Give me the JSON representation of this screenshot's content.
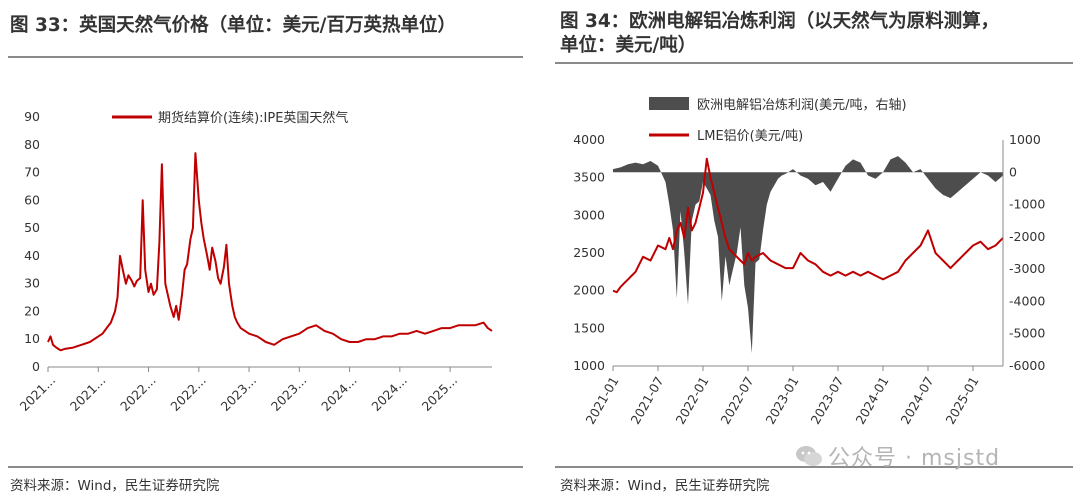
{
  "left_panel": {
    "title": "图 33：英国天然气价格（单位：美元/百万英热单位）",
    "source": "资料来源：Wind，民生证券研究院"
  },
  "right_panel": {
    "title_line1": "图 34：欧洲电解铝冶炼利润（以天然气为原料测算，",
    "title_line2": "单位：美元/吨）",
    "source": "资料来源：Wind，民生证券研究院"
  },
  "watermark": {
    "text": "公众号 · msjstd",
    "icon": "wechat-icon"
  },
  "colors": {
    "red": "#c00000",
    "gray": "#4d4d4d",
    "axis": "#888888"
  },
  "chart_data": [
    {
      "type": "line",
      "title": "英国天然气价格（单位：美元/百万英热单位）",
      "legend": [
        "期货结算价(连续):IPE英国天然气"
      ],
      "legend_position": "top-center",
      "ylim": [
        0,
        90
      ],
      "yticks": [
        0,
        10,
        20,
        30,
        40,
        50,
        60,
        70,
        80,
        90
      ],
      "xlim": [
        0,
        53
      ],
      "xticks": [
        0,
        6,
        12,
        18,
        24,
        30,
        36,
        42,
        48
      ],
      "xtick_labels": [
        "2021...",
        "2021...",
        "2022...",
        "2022...",
        "2023...",
        "2023...",
        "2024...",
        "2024...",
        "2025..."
      ],
      "series": [
        {
          "name": "期货结算价(连续):IPE英国天然气",
          "x": [
            0,
            0.3,
            0.6,
            1,
            1.5,
            2,
            3,
            4,
            5,
            6,
            6.5,
            7,
            7.5,
            8,
            8.3,
            8.6,
            9,
            9.3,
            9.6,
            10,
            10.3,
            10.6,
            11,
            11.3,
            11.6,
            12,
            12.3,
            12.6,
            13,
            13.3,
            13.6,
            14,
            14.3,
            14.6,
            15,
            15.3,
            15.6,
            16,
            16.3,
            16.6,
            17,
            17.3,
            17.6,
            18,
            18.3,
            18.6,
            19,
            19.3,
            19.6,
            20,
            20.3,
            20.6,
            21,
            21.3,
            21.6,
            22,
            22.3,
            22.6,
            23,
            24,
            25,
            26,
            27,
            28,
            29,
            30,
            31,
            32,
            33,
            34,
            35,
            36,
            37,
            38,
            39,
            40,
            41,
            42,
            43,
            44,
            45,
            46,
            47,
            48,
            49,
            50,
            51,
            52,
            52.5,
            53
          ],
          "y": [
            9,
            11,
            8,
            7,
            6,
            6.5,
            7,
            8,
            9,
            11,
            12,
            14,
            16,
            20,
            25,
            40,
            34,
            30,
            33,
            31,
            29,
            31,
            32,
            60,
            35,
            27,
            30,
            26,
            28,
            45,
            73,
            30,
            26,
            22,
            18,
            22,
            17,
            26,
            35,
            37,
            46,
            50,
            77,
            60,
            52,
            46,
            40,
            35,
            43,
            38,
            32,
            30,
            36,
            44,
            30,
            22,
            18,
            16,
            14,
            12,
            11,
            9,
            8,
            10,
            11,
            12,
            14,
            15,
            13,
            12,
            10,
            9,
            9,
            10,
            10,
            11,
            11,
            12,
            12,
            13,
            12,
            13,
            14,
            14,
            15,
            15,
            15,
            16,
            14,
            13
          ]
        }
      ]
    },
    {
      "type": "line+area",
      "title": "欧洲电解铝冶炼利润（以天然气为原料测算，单位：美元/吨）",
      "legend": [
        "欧洲电解铝冶炼利润(美元/吨，右轴)",
        "LME铝价(美元/吨)"
      ],
      "legend_position": "top-center",
      "x_tick_labels": [
        "2021-01",
        "2021-07",
        "2022-01",
        "2022-07",
        "2023-01",
        "2023-07",
        "2024-01",
        "2024-07",
        "2025-01"
      ],
      "x_tick_months": [
        0,
        6,
        12,
        18,
        24,
        30,
        36,
        42,
        48
      ],
      "xlim": [
        0,
        52
      ],
      "ylim_left": [
        1000,
        4000
      ],
      "yticks_left": [
        1000,
        1500,
        2000,
        2500,
        3000,
        3500,
        4000
      ],
      "ylim_right": [
        -6000,
        1000
      ],
      "yticks_right": [
        -6000,
        -5000,
        -4000,
        -3000,
        -2000,
        -1000,
        0,
        1000
      ],
      "series": [
        {
          "name": "欧洲电解铝冶炼利润(美元/吨，右轴)",
          "axis": "right",
          "kind": "area",
          "x": [
            0,
            1,
            2,
            3,
            4,
            5,
            6,
            7,
            7.5,
            8,
            8.5,
            9,
            9.5,
            10,
            10.5,
            11,
            11.5,
            12,
            12.5,
            13,
            13.5,
            14,
            14.5,
            15,
            15.5,
            16,
            16.5,
            17,
            17.5,
            18,
            18.5,
            19,
            19.5,
            20,
            20.5,
            21,
            21.5,
            22,
            22.5,
            23,
            24,
            25,
            26,
            27,
            28,
            29,
            30,
            31,
            32,
            33,
            34,
            35,
            36,
            37,
            38,
            39,
            40,
            41,
            42,
            43,
            44,
            45,
            46,
            47,
            48,
            49,
            50,
            51,
            52
          ],
          "y": [
            100,
            150,
            250,
            300,
            250,
            350,
            200,
            -300,
            -1000,
            -1800,
            -3900,
            -1200,
            -2500,
            -4100,
            -1500,
            -1000,
            -900,
            -300,
            -500,
            -700,
            -1500,
            -2000,
            -4000,
            -2600,
            -3500,
            -3000,
            -2500,
            -1700,
            -3500,
            -4200,
            -5600,
            -2800,
            -2700,
            -1800,
            -1000,
            -600,
            -400,
            -200,
            -100,
            -50,
            100,
            -100,
            -200,
            -400,
            -300,
            -600,
            -200,
            200,
            400,
            300,
            -100,
            -200,
            0,
            400,
            500,
            300,
            0,
            100,
            -200,
            -500,
            -700,
            -800,
            -600,
            -400,
            -200,
            0,
            -100,
            -300,
            -100
          ]
        },
        {
          "name": "LME铝价(美元/吨)",
          "axis": "left",
          "kind": "line",
          "x": [
            0,
            0.5,
            1,
            1.5,
            2,
            3,
            4,
            5,
            6,
            7,
            7.5,
            8,
            8.5,
            9,
            9.5,
            10,
            10.5,
            11,
            11.5,
            12,
            12.5,
            13,
            13.5,
            14,
            14.5,
            15,
            15.5,
            16,
            16.5,
            17,
            17.5,
            18,
            18.5,
            19,
            20,
            21,
            22,
            23,
            24,
            25,
            26,
            27,
            28,
            29,
            30,
            31,
            32,
            33,
            34,
            35,
            36,
            37,
            38,
            39,
            40,
            41,
            42,
            43,
            44,
            45,
            46,
            47,
            48,
            49,
            50,
            51,
            52
          ],
          "y": [
            2000,
            1980,
            2050,
            2100,
            2150,
            2250,
            2450,
            2400,
            2600,
            2550,
            2700,
            2550,
            2800,
            2900,
            2700,
            3100,
            2800,
            2900,
            3100,
            3300,
            3750,
            3500,
            3300,
            3100,
            2900,
            2700,
            2550,
            2500,
            2450,
            2400,
            2350,
            2500,
            2400,
            2450,
            2500,
            2400,
            2350,
            2300,
            2300,
            2500,
            2400,
            2350,
            2250,
            2200,
            2250,
            2200,
            2250,
            2200,
            2250,
            2200,
            2150,
            2200,
            2250,
            2400,
            2500,
            2600,
            2800,
            2500,
            2400,
            2300,
            2400,
            2500,
            2600,
            2650,
            2550,
            2600,
            2700
          ]
        }
      ]
    }
  ]
}
